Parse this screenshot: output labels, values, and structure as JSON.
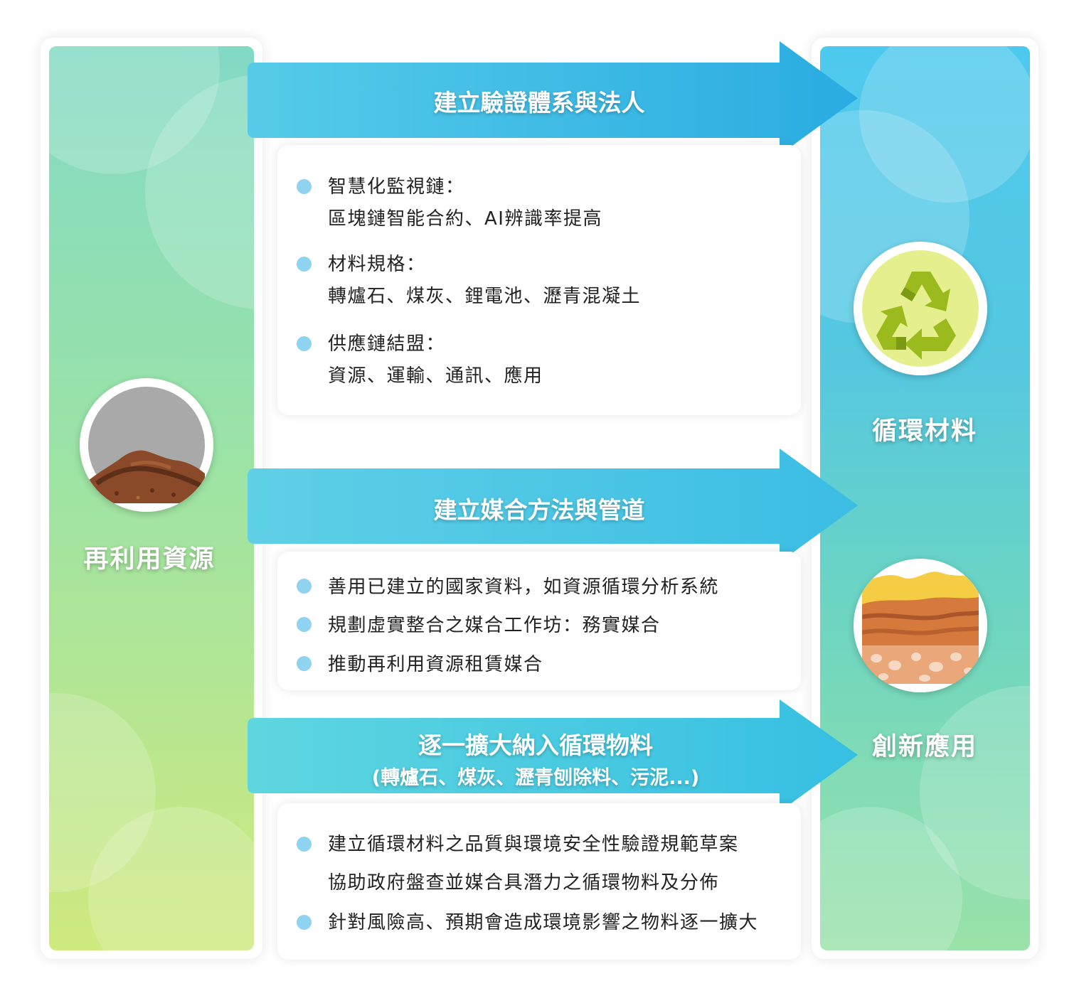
{
  "colors": {
    "arrow": "#3cbde6",
    "bullet": "#8fd3f0"
  },
  "left_column": {
    "label": "再利用資源",
    "icon": "soil-mound-icon"
  },
  "right_column": {
    "top_label": "循環材料",
    "top_icon": "recycle-icon",
    "bottom_label": "創新應用",
    "bottom_icon": "soil-layers-icon"
  },
  "sections": [
    {
      "title": "建立驗證體系與法人",
      "bullets": [
        {
          "head": "智慧化監視鏈：",
          "sub": "區塊鏈智能合約、AI辨識率提高"
        },
        {
          "head": "材料規格：",
          "sub": "轉爐石、煤灰、鋰電池、瀝青混凝土"
        },
        {
          "head": "供應鏈結盟：",
          "sub": "資源、運輸、通訊、應用"
        }
      ]
    },
    {
      "title": "建立媒合方法與管道",
      "bullets": [
        "善用已建立的國家資料，如資源循環分析系統",
        "規劃虛實整合之媒合工作坊：務實媒合",
        "推動再利用資源租賃媒合"
      ]
    },
    {
      "title": "逐一擴大納入循環物料",
      "subtitle": "(轉爐石、煤灰、瀝青刨除料、污泥...)",
      "bullets": [
        {
          "head": "建立循環材料之品質與環境安全性驗證規範草案",
          "sub": "協助政府盤查並媒合具潛力之循環物料及分佈"
        },
        {
          "head": "針對風險高、預期會造成環境影響之物料逐一擴大"
        }
      ]
    }
  ]
}
